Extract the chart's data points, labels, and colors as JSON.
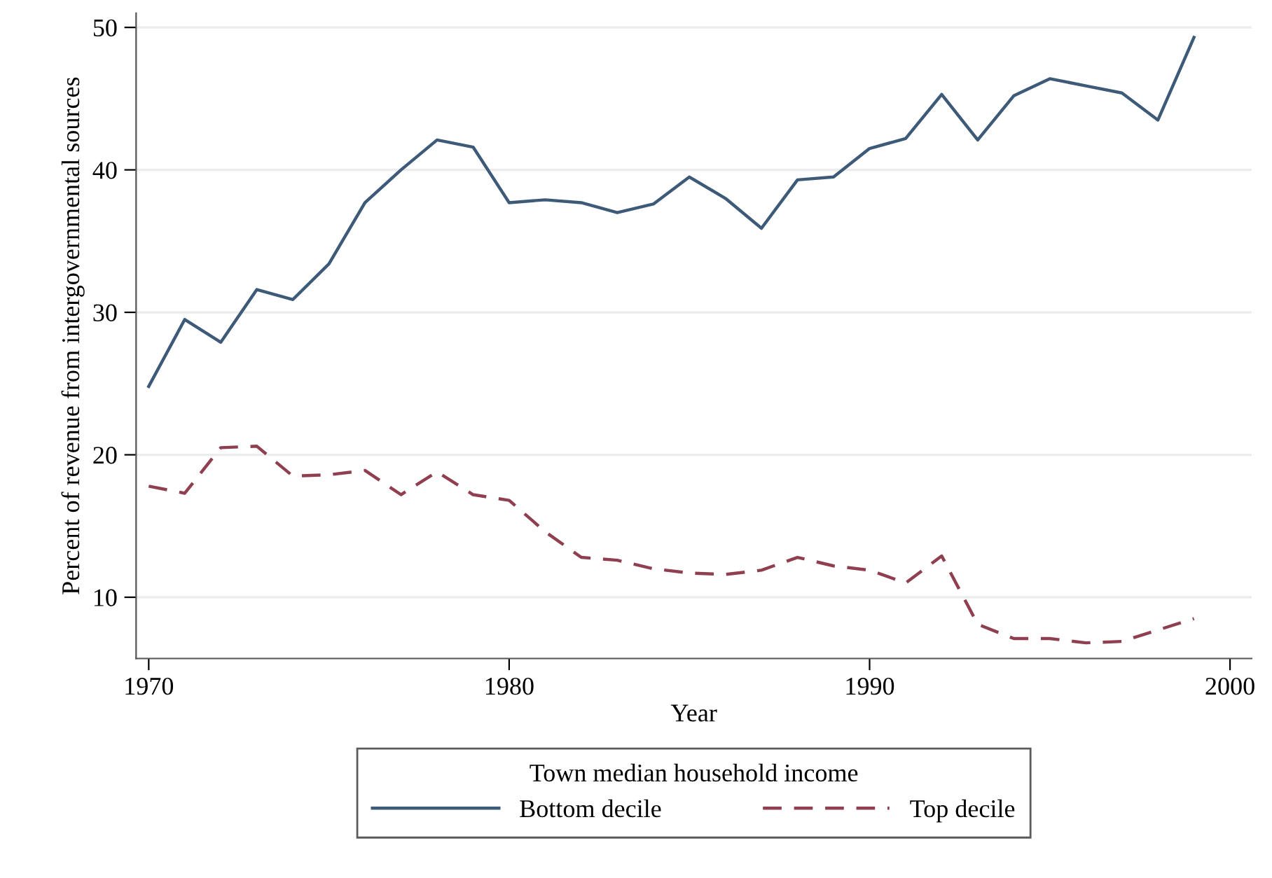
{
  "chart_data": {
    "type": "line",
    "xlabel": "Year",
    "ylabel": "Percent of revenue from intergovernmental sources",
    "legend_title": "Town median household income",
    "x": [
      1970,
      1971,
      1972,
      1973,
      1974,
      1975,
      1976,
      1977,
      1978,
      1979,
      1980,
      1981,
      1982,
      1983,
      1984,
      1985,
      1986,
      1987,
      1988,
      1989,
      1990,
      1991,
      1992,
      1993,
      1994,
      1995,
      1996,
      1997,
      1998,
      1999
    ],
    "series": [
      {
        "name": "Bottom decile",
        "color": "#3d5a78",
        "line_style": "solid",
        "values": [
          24.8,
          29.5,
          27.9,
          31.6,
          30.9,
          33.4,
          37.7,
          40.0,
          42.1,
          41.6,
          37.7,
          37.9,
          37.7,
          37.0,
          37.6,
          39.5,
          38.0,
          35.9,
          39.3,
          39.5,
          41.5,
          42.2,
          45.3,
          42.1,
          45.2,
          46.4,
          45.9,
          45.4,
          43.5,
          49.3
        ]
      },
      {
        "name": "Top decile",
        "color": "#8f3f50",
        "line_style": "dashed",
        "values": [
          17.8,
          17.3,
          20.5,
          20.6,
          18.5,
          18.6,
          18.9,
          17.2,
          18.8,
          17.2,
          16.8,
          14.6,
          12.8,
          12.6,
          12.0,
          11.7,
          11.6,
          11.9,
          12.8,
          12.2,
          11.9,
          11.0,
          12.9,
          8.1,
          7.1,
          7.1,
          6.8,
          6.9,
          7.7,
          8.5
        ]
      }
    ],
    "xlim": [
      1969.65,
      2000.6
    ],
    "xticks": [
      1970,
      1980,
      1990,
      2000
    ],
    "ylim": [
      5.7,
      51
    ],
    "yticks": [
      10,
      20,
      30,
      40,
      50
    ],
    "grid": "y",
    "legend": "bottom",
    "marker": "none"
  }
}
